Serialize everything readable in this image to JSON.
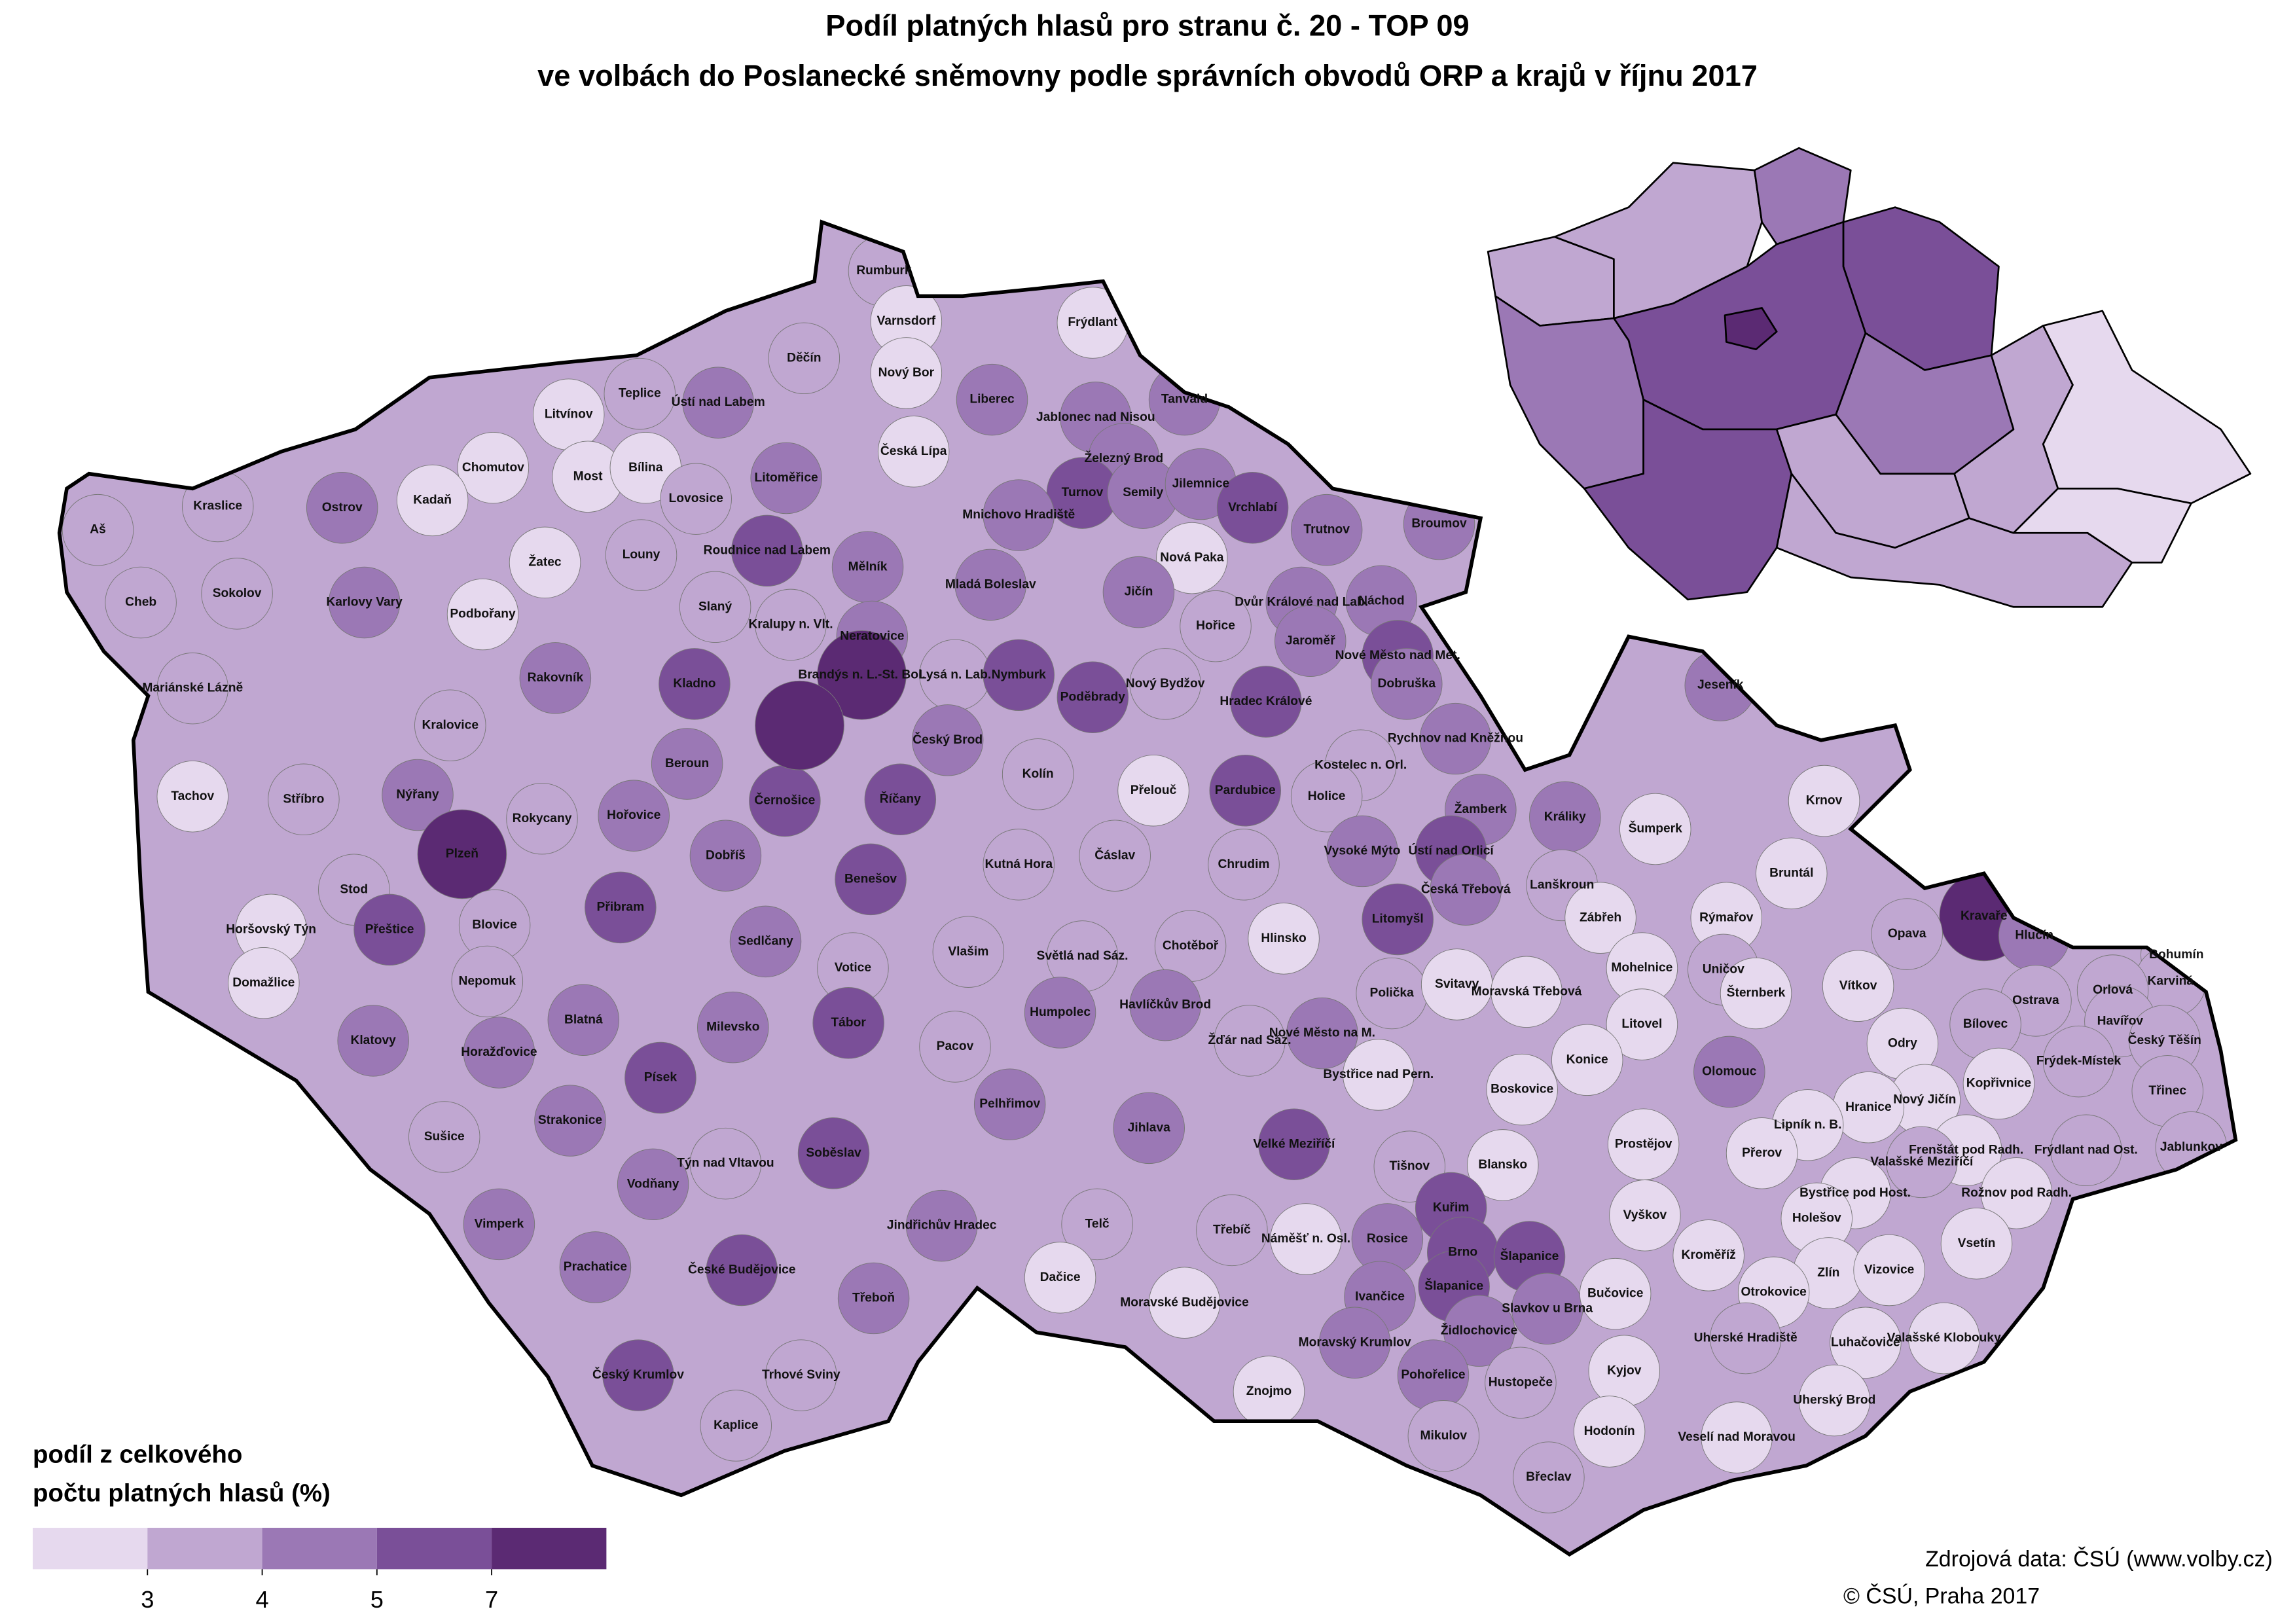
{
  "chart_data": {
    "type": "choropleth",
    "title": "Podíl platných hlasů pro stranu č. 20 - TOP 09",
    "subtitle": "ve volbách do Poslanecké sněmovny podle správních obvodů ORP a krajů v říjnu 2017",
    "legend": {
      "title_lines": [
        "podíl z celkového",
        "počtu platných hlasů (%)"
      ],
      "breaks": [
        3,
        4,
        5,
        7
      ],
      "colors": [
        "#e6d9ee",
        "#c0a7d1",
        "#9b78b5",
        "#7a4f98",
        "#5b2a73"
      ]
    },
    "source": [
      "Zdrojová data: ČSÚ (www.volby.cz)",
      "© ČSÚ, Praha 2017"
    ],
    "inset": {
      "values": [
        3.5,
        3.5,
        4.5,
        5.5,
        4.5,
        5.5,
        7.5,
        4.5,
        5.5,
        3.5,
        3.5,
        3.5,
        2.5,
        2.5
      ]
    },
    "regions": [
      {
        "name": "Rumburk",
        "value": 3.5
      },
      {
        "name": "Varnsdorf",
        "value": 2.5
      },
      {
        "name": "Frýdlant",
        "value": 2.5
      },
      {
        "name": "Děčín",
        "value": 3.5
      },
      {
        "name": "Nový Bor",
        "value": 2.5
      },
      {
        "name": "Teplice",
        "value": 3.5
      },
      {
        "name": "Ústí nad Labem",
        "value": 4.5
      },
      {
        "name": "Liberec",
        "value": 4.5
      },
      {
        "name": "Jablonec nad Nisou",
        "value": 4.5
      },
      {
        "name": "Tanvald",
        "value": 4.5
      },
      {
        "name": "Litvínov",
        "value": 2.5
      },
      {
        "name": "Chomutov",
        "value": 2.5
      },
      {
        "name": "Most",
        "value": 2.5
      },
      {
        "name": "Bílina",
        "value": 2.5
      },
      {
        "name": "Česká Lípa",
        "value": 2.5
      },
      {
        "name": "Lovosice",
        "value": 3.5
      },
      {
        "name": "Litoměřice",
        "value": 4.5
      },
      {
        "name": "Železný Brod",
        "value": 4.5
      },
      {
        "name": "Turnov",
        "value": 5.5
      },
      {
        "name": "Semily",
        "value": 4.5
      },
      {
        "name": "Jilemnice",
        "value": 4.5
      },
      {
        "name": "Mnichovo Hradiště",
        "value": 4.5
      },
      {
        "name": "Vrchlabí",
        "value": 5.5
      },
      {
        "name": "Trutnov",
        "value": 4.5
      },
      {
        "name": "Broumov",
        "value": 4.5
      },
      {
        "name": "Kraslice",
        "value": 3.5
      },
      {
        "name": "Ostrov",
        "value": 4.5
      },
      {
        "name": "Kadaň",
        "value": 2.5
      },
      {
        "name": "Aš",
        "value": 3.5
      },
      {
        "name": "Roudnice nad Labem",
        "value": 5.5
      },
      {
        "name": "Žatec",
        "value": 2.5
      },
      {
        "name": "Louny",
        "value": 3.5
      },
      {
        "name": "Mělník",
        "value": 4.5
      },
      {
        "name": "Nová Paka",
        "value": 2.5
      },
      {
        "name": "Cheb",
        "value": 3.5
      },
      {
        "name": "Sokolov",
        "value": 3.5
      },
      {
        "name": "Karlovy Vary",
        "value": 4.5
      },
      {
        "name": "Podbořany",
        "value": 2.5
      },
      {
        "name": "Mladá Boleslav",
        "value": 4.5
      },
      {
        "name": "Jičín",
        "value": 4.5
      },
      {
        "name": "Dvůr Králové nad Lab.",
        "value": 4.5
      },
      {
        "name": "Náchod",
        "value": 4.5
      },
      {
        "name": "Slaný",
        "value": 3.5
      },
      {
        "name": "Kralupy n. Vlt.",
        "value": 3.5
      },
      {
        "name": "Neratovice",
        "value": 4.5
      },
      {
        "name": "Hořice",
        "value": 3.5
      },
      {
        "name": "Jaroměř",
        "value": 4.5
      },
      {
        "name": "Nové Město nad Met.",
        "value": 5.5
      },
      {
        "name": "Dobruška",
        "value": 4.5
      },
      {
        "name": "Rakovník",
        "value": 4.5
      },
      {
        "name": "Kladno",
        "value": 5.5
      },
      {
        "name": "Brandýs n. L.-St. Bol.",
        "value": 7.5
      },
      {
        "name": "Lysá n. Lab.",
        "value": 3.5
      },
      {
        "name": "Nymburk",
        "value": 5.5
      },
      {
        "name": "Nový Bydžov",
        "value": 3.5
      },
      {
        "name": "Poděbrady",
        "value": 5.5
      },
      {
        "name": "Hradec Králové",
        "value": 6
      },
      {
        "name": "Mariánské Lázně",
        "value": 3.5
      },
      {
        "name": "Kralovice",
        "value": 3.5
      },
      {
        "name": "Rychnov nad Kněžnou",
        "value": 4.5
      },
      {
        "name": "Český Brod",
        "value": 4.5
      },
      {
        "name": "Beroun",
        "value": 4.5
      },
      {
        "name": "Kolín",
        "value": 3.5
      },
      {
        "name": "Tachov",
        "value": 2.5
      },
      {
        "name": "Stříbro",
        "value": 3.5
      },
      {
        "name": "Nýřany",
        "value": 4.5
      },
      {
        "name": "Přelouč",
        "value": 2.5
      },
      {
        "name": "Pardubice",
        "value": 5.5
      },
      {
        "name": "Kostelec n. Orl.",
        "value": 3.5
      },
      {
        "name": "Holice",
        "value": 3.5
      },
      {
        "name": "Černošice",
        "value": 6
      },
      {
        "name": "Říčany",
        "value": 6
      },
      {
        "name": "Hořovice",
        "value": 4.5
      },
      {
        "name": "Rokycany",
        "value": 3.5
      },
      {
        "name": "Žamberk",
        "value": 4.5
      },
      {
        "name": "Králiky",
        "value": 4.5
      },
      {
        "name": "Plzeň",
        "value": 7.5
      },
      {
        "name": "Vysoké Mýto",
        "value": 4.5
      },
      {
        "name": "Ústí nad Orlicí",
        "value": 5.5
      },
      {
        "name": "Šumperk",
        "value": 2.5
      },
      {
        "name": "Krnov",
        "value": 2.5
      },
      {
        "name": "Stod",
        "value": 3.5
      },
      {
        "name": "Dobříš",
        "value": 4.5
      },
      {
        "name": "Kutná Hora",
        "value": 3.5
      },
      {
        "name": "Čáslav",
        "value": 3.5
      },
      {
        "name": "Chrudim",
        "value": 3.5
      },
      {
        "name": "Benešov",
        "value": 5.5
      },
      {
        "name": "Česká Třebová",
        "value": 4.5
      },
      {
        "name": "Lanškroun",
        "value": 3.5
      },
      {
        "name": "Bruntál",
        "value": 2.5
      },
      {
        "name": "Kravaře",
        "value": 7.5
      },
      {
        "name": "Hlučín",
        "value": 4.5
      },
      {
        "name": "Horšovský Týn",
        "value": 2.5
      },
      {
        "name": "Přibram",
        "value": 5.5
      },
      {
        "name": "Litomyšl",
        "value": 5.5
      },
      {
        "name": "Zábřeh",
        "value": 2.5
      },
      {
        "name": "Rýmařov",
        "value": 2.5
      },
      {
        "name": "Opava",
        "value": 3.5
      },
      {
        "name": "Přeštice",
        "value": 5.5
      },
      {
        "name": "Blovice",
        "value": 3.5
      },
      {
        "name": "Sedlčany",
        "value": 4.5
      },
      {
        "name": "Chotěboř",
        "value": 3.5
      },
      {
        "name": "Hlinsko",
        "value": 2.5
      },
      {
        "name": "Vlašim",
        "value": 3.5
      },
      {
        "name": "Světlá nad Sáz.",
        "value": 3.5
      },
      {
        "name": "Bohumín",
        "value": 3.5
      },
      {
        "name": "Domažlice",
        "value": 2.5
      },
      {
        "name": "Nepomuk",
        "value": 3.5
      },
      {
        "name": "Votice",
        "value": 3.5
      },
      {
        "name": "Mohelnice",
        "value": 2.5
      },
      {
        "name": "Uničov",
        "value": 3.5
      },
      {
        "name": "Šternberk",
        "value": 2.5
      },
      {
        "name": "Polička",
        "value": 3.5
      },
      {
        "name": "Svitavy",
        "value": 2.5
      },
      {
        "name": "Moravská Třebová",
        "value": 2.5
      },
      {
        "name": "Karviná",
        "value": 3.5
      },
      {
        "name": "Vítkov",
        "value": 2.5
      },
      {
        "name": "Ostrava",
        "value": 3.5
      },
      {
        "name": "Orlová",
        "value": 3.5
      },
      {
        "name": "Havířov",
        "value": 3.5
      },
      {
        "name": "Český Těšín",
        "value": 3.5
      },
      {
        "name": "Humpolec",
        "value": 4.5
      },
      {
        "name": "Havlíčkův Brod",
        "value": 4.5
      },
      {
        "name": "Blatná",
        "value": 4.5
      },
      {
        "name": "Milevsko",
        "value": 4.5
      },
      {
        "name": "Tábor",
        "value": 5.5
      },
      {
        "name": "Litovel",
        "value": 2.5
      },
      {
        "name": "Bílovec",
        "value": 3.5
      },
      {
        "name": "Klatovy",
        "value": 4.5
      },
      {
        "name": "Horažďovice",
        "value": 4.5
      },
      {
        "name": "Žďár nad Sáz.",
        "value": 3.5
      },
      {
        "name": "Nové Město na M.",
        "value": 4.5
      },
      {
        "name": "Pacov",
        "value": 3.5
      },
      {
        "name": "Odry",
        "value": 2.5
      },
      {
        "name": "Frýdek-Místek",
        "value": 3.5
      },
      {
        "name": "Bystřice nad Pern.",
        "value": 2.5
      },
      {
        "name": "Kopřivnice",
        "value": 2.5
      },
      {
        "name": "Písek",
        "value": 5.5
      },
      {
        "name": "Olomouc",
        "value": 4.5
      },
      {
        "name": "Konice",
        "value": 2.5
      },
      {
        "name": "Boskovice",
        "value": 2.5
      },
      {
        "name": "Pelhřimov",
        "value": 4.5
      },
      {
        "name": "Nový Jičín",
        "value": 2.5
      },
      {
        "name": "Třinec",
        "value": 3.5
      },
      {
        "name": "Hranice",
        "value": 2.5
      },
      {
        "name": "Lipník n. B.",
        "value": 2.5
      },
      {
        "name": "Strakonice",
        "value": 4.5
      },
      {
        "name": "Jihlava",
        "value": 4.5
      },
      {
        "name": "Velké Meziříčí",
        "value": 5.5
      },
      {
        "name": "Sušice",
        "value": 3.5
      },
      {
        "name": "Týn nad Vltavou",
        "value": 3.5
      },
      {
        "name": "Prostějov",
        "value": 2.5
      },
      {
        "name": "Přerov",
        "value": 2.5
      },
      {
        "name": "Frenštát pod Radh.",
        "value": 2.5
      },
      {
        "name": "Frýdlant nad Ost.",
        "value": 3.5
      },
      {
        "name": "Jablunkov",
        "value": 3.5
      },
      {
        "name": "Soběslav",
        "value": 5.5
      },
      {
        "name": "Tišnov",
        "value": 3.5
      },
      {
        "name": "Blansko",
        "value": 2.5
      },
      {
        "name": "Valašské Meziříčí",
        "value": 3.5
      },
      {
        "name": "Vodňany",
        "value": 4.5
      },
      {
        "name": "Rožnov pod Radh.",
        "value": 2.5
      },
      {
        "name": "Bystřice pod Host.",
        "value": 2.5
      },
      {
        "name": "Vimperk",
        "value": 4.5
      },
      {
        "name": "Jindřichův Hradec",
        "value": 4.5
      },
      {
        "name": "Telč",
        "value": 3.5
      },
      {
        "name": "Třebíč",
        "value": 3.5
      },
      {
        "name": "Kuřim",
        "value": 5.5
      },
      {
        "name": "Vyškov",
        "value": 2.5
      },
      {
        "name": "Holešov",
        "value": 2.5
      },
      {
        "name": "Vsetín",
        "value": 2.5
      },
      {
        "name": "Náměšť n. Osl.",
        "value": 2.5
      },
      {
        "name": "Rosice",
        "value": 4.5
      },
      {
        "name": "Brno",
        "value": 6
      },
      {
        "name": "Šlapanice",
        "value": 5.5
      },
      {
        "name": "Prachatice",
        "value": 4.5
      },
      {
        "name": "České Budějovice",
        "value": 5.5
      },
      {
        "name": "Kroměříž",
        "value": 2.5
      },
      {
        "name": "Zlín",
        "value": 2.5
      },
      {
        "name": "Vizovice",
        "value": 2.5
      },
      {
        "name": "Dačice",
        "value": 2.5
      },
      {
        "name": "Šlapanice",
        "value": 5.5
      },
      {
        "name": "Slavkov u Brna",
        "value": 4.5
      },
      {
        "name": "Ivančice",
        "value": 4.5
      },
      {
        "name": "Třeboň",
        "value": 4.5
      },
      {
        "name": "Moravské Budějovice",
        "value": 2.5
      },
      {
        "name": "Bučovice",
        "value": 2.5
      },
      {
        "name": "Otrokovice",
        "value": 2.5
      },
      {
        "name": "Moravský Krumlov",
        "value": 4.5
      },
      {
        "name": "Židlochovice",
        "value": 4.5
      },
      {
        "name": "Uherské Hradiště",
        "value": 3.5
      },
      {
        "name": "Luhačovice",
        "value": 2.5
      },
      {
        "name": "Valašské Klobouky",
        "value": 2.5
      },
      {
        "name": "Český Krumlov",
        "value": 5.5
      },
      {
        "name": "Trhové Sviny",
        "value": 3.5
      },
      {
        "name": "Pohořelice",
        "value": 4.5
      },
      {
        "name": "Hustopeče",
        "value": 3.5
      },
      {
        "name": "Kyjov",
        "value": 2.5
      },
      {
        "name": "Znojmo",
        "value": 2.5
      },
      {
        "name": "Uherský Brod",
        "value": 2.5
      },
      {
        "name": "Kaplice",
        "value": 3.5
      },
      {
        "name": "Mikulov",
        "value": 3.5
      },
      {
        "name": "Hodonín",
        "value": 2.5
      },
      {
        "name": "Veselí nad Moravou",
        "value": 2.5
      },
      {
        "name": "Břeclav",
        "value": 3.5
      },
      {
        "name": "Jeseník",
        "value": 4.5
      },
      {
        "name": null,
        "value": 7.5
      }
    ]
  }
}
